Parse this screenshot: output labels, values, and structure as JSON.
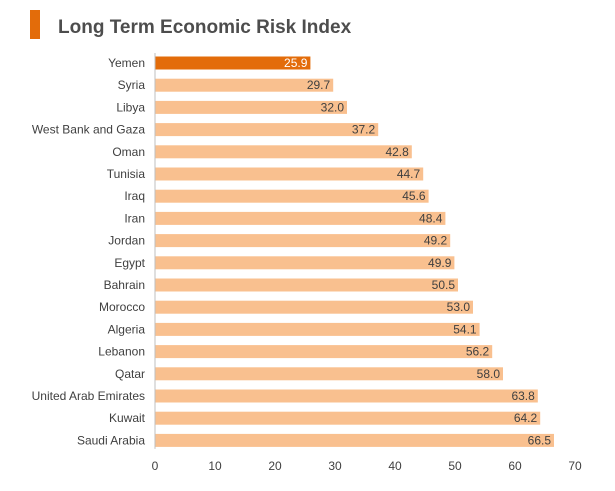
{
  "header": {
    "title": "Long Term Economic Risk Index"
  },
  "colors": {
    "accent": "#e36c0a",
    "highlight_bar": "#e36c0a",
    "bar": "#f9c08f",
    "axis": "#bfbfbf",
    "text": "#404040"
  },
  "chart_data": {
    "type": "bar",
    "orientation": "horizontal",
    "title": "Long Term Economic Risk Index",
    "categories": [
      "Yemen",
      "Syria",
      "Libya",
      "West Bank and Gaza",
      "Oman",
      "Tunisia",
      "Iraq",
      "Iran",
      "Jordan",
      "Egypt",
      "Bahrain",
      "Morocco",
      "Algeria",
      "Lebanon",
      "Qatar",
      "United Arab Emirates",
      "Kuwait",
      "Saudi Arabia"
    ],
    "values": [
      25.9,
      29.7,
      32.0,
      37.2,
      42.8,
      44.7,
      45.6,
      48.4,
      49.2,
      49.9,
      50.5,
      53.0,
      54.1,
      56.2,
      58.0,
      63.8,
      64.2,
      66.5
    ],
    "value_labels": [
      "25.9",
      "29.7",
      "32.0",
      "37.2",
      "42.8",
      "44.7",
      "45.6",
      "48.4",
      "49.2",
      "49.9",
      "50.5",
      "53.0",
      "54.1",
      "56.2",
      "58.0",
      "63.8",
      "64.2",
      "66.5"
    ],
    "highlighted": "Yemen",
    "xlim": [
      0,
      70
    ],
    "xticks": [
      0,
      10,
      20,
      30,
      40,
      50,
      60,
      70
    ],
    "tick_labels": [
      "0",
      "10",
      "20",
      "30",
      "40",
      "50",
      "60",
      "70"
    ],
    "grid": false,
    "legend": "none"
  }
}
